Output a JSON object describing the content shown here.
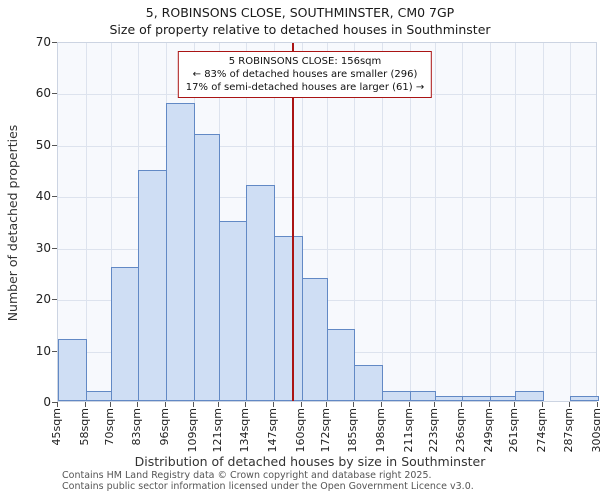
{
  "chart_data": {
    "type": "bar",
    "title": "5, ROBINSONS CLOSE, SOUTHMINSTER, CM0 7GP",
    "subtitle": "Size of property relative to detached houses in Southminster",
    "xlabel": "Distribution of detached houses by size in Southminster",
    "ylabel": "Number of detached properties",
    "ylim": [
      0,
      70
    ],
    "ytick_labels": [
      0,
      10,
      20,
      30,
      40,
      50,
      60,
      70
    ],
    "bin_edges_sqm": [
      45,
      58,
      70,
      83,
      96,
      109,
      121,
      134,
      147,
      160,
      172,
      185,
      198,
      211,
      223,
      236,
      249,
      261,
      274,
      287,
      300
    ],
    "bin_labels": [
      "45sqm",
      "58sqm",
      "70sqm",
      "83sqm",
      "96sqm",
      "109sqm",
      "121sqm",
      "134sqm",
      "147sqm",
      "160sqm",
      "172sqm",
      "185sqm",
      "198sqm",
      "211sqm",
      "223sqm",
      "236sqm",
      "249sqm",
      "261sqm",
      "274sqm",
      "287sqm",
      "300sqm"
    ],
    "values": [
      12,
      2,
      26,
      45,
      58,
      52,
      35,
      42,
      32,
      24,
      14,
      7,
      2,
      2,
      1,
      1,
      1,
      2,
      0,
      1
    ],
    "marker": {
      "label": "5 ROBINSONS CLOSE",
      "value_sqm": 156,
      "color": "#aa1414"
    },
    "annotation": {
      "line1": "5 ROBINSONS CLOSE: 156sqm",
      "line2": "← 83% of detached houses are smaller (296)",
      "line3": "17% of semi-detached houses are larger (61) →"
    },
    "colors": {
      "bar_fill": "#cfdef4",
      "bar_border": "#6289c5",
      "grid": "#dde3ee",
      "plot_bg": "#f7f9fd"
    },
    "grid": true,
    "legend": false
  },
  "footer": {
    "line1": "Contains HM Land Registry data © Crown copyright and database right 2025.",
    "line2": "Contains public sector information licensed under the Open Government Licence v3.0."
  }
}
